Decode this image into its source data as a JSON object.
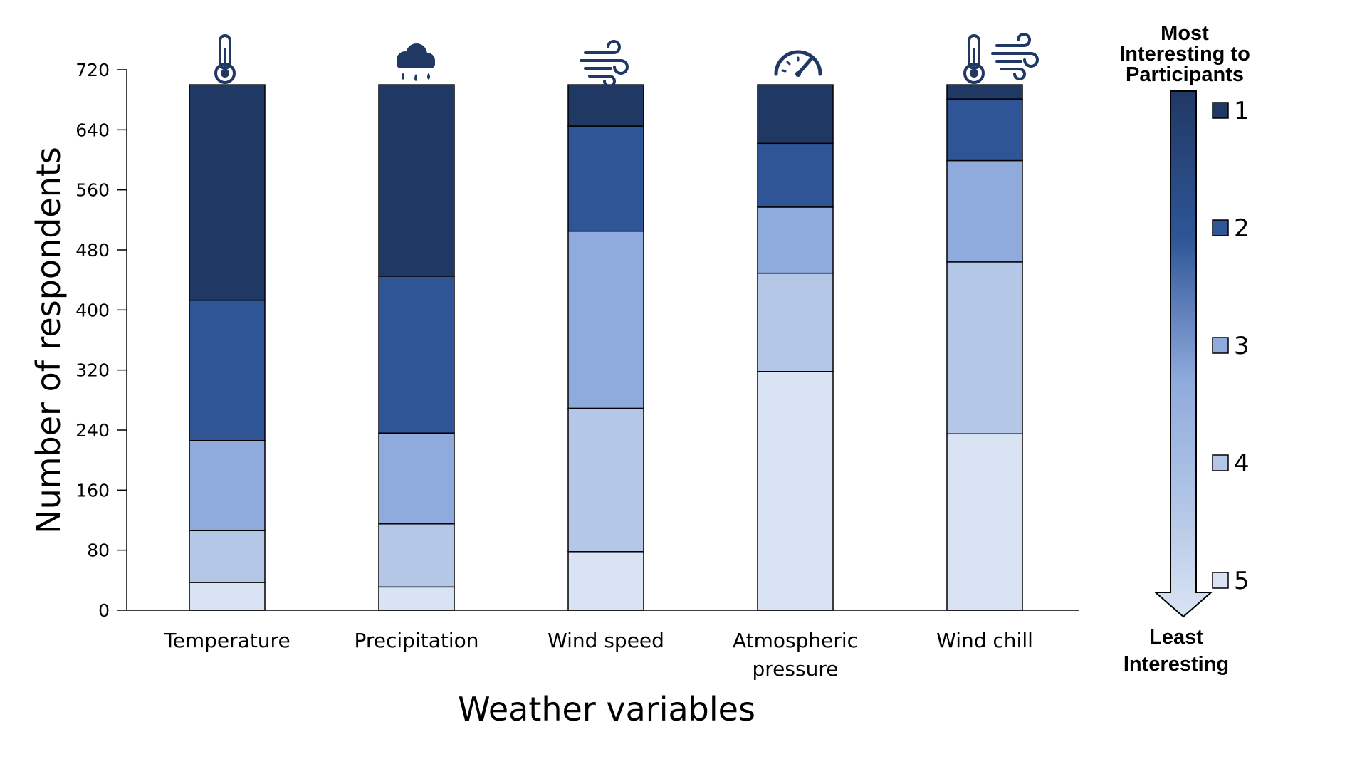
{
  "chart_data": {
    "type": "bar",
    "stacked": true,
    "title": "",
    "xlabel": "Weather variables",
    "ylabel": "Number of respondents",
    "ylim": [
      0,
      720
    ],
    "yticks": [
      0,
      80,
      160,
      240,
      320,
      400,
      480,
      560,
      640,
      720
    ],
    "categories": [
      "Temperature",
      "Precipitation",
      "Wind speed",
      "Atmospheric pressure",
      "Wind chill"
    ],
    "category_lines": [
      [
        "Temperature"
      ],
      [
        "Precipitation"
      ],
      [
        "Wind speed"
      ],
      [
        "Atmospheric",
        "pressure"
      ],
      [
        "Wind chill"
      ]
    ],
    "category_icons": [
      "thermometer-icon",
      "rain-cloud-icon",
      "wind-icon",
      "gauge-icon",
      "wind-chill-icon"
    ],
    "series": [
      {
        "name": "5",
        "color": "#dae3f3",
        "values": [
          37,
          31,
          78,
          318,
          235
        ]
      },
      {
        "name": "4",
        "color": "#b4c7e7",
        "values": [
          69,
          84,
          191,
          131,
          229
        ]
      },
      {
        "name": "3",
        "color": "#8faadc",
        "values": [
          120,
          121,
          236,
          88,
          135
        ]
      },
      {
        "name": "2",
        "color": "#2f5597",
        "values": [
          187,
          209,
          140,
          85,
          82
        ]
      },
      {
        "name": "1",
        "color": "#203864",
        "values": [
          287,
          255,
          55,
          78,
          19
        ]
      }
    ],
    "legend": {
      "position": "right",
      "title_top_lines": [
        "Most",
        "Interesting to",
        "Participants"
      ],
      "title_bottom_lines": [
        "Least",
        "Interesting"
      ],
      "order": [
        "1",
        "2",
        "3",
        "4",
        "5"
      ]
    },
    "grid": false
  }
}
